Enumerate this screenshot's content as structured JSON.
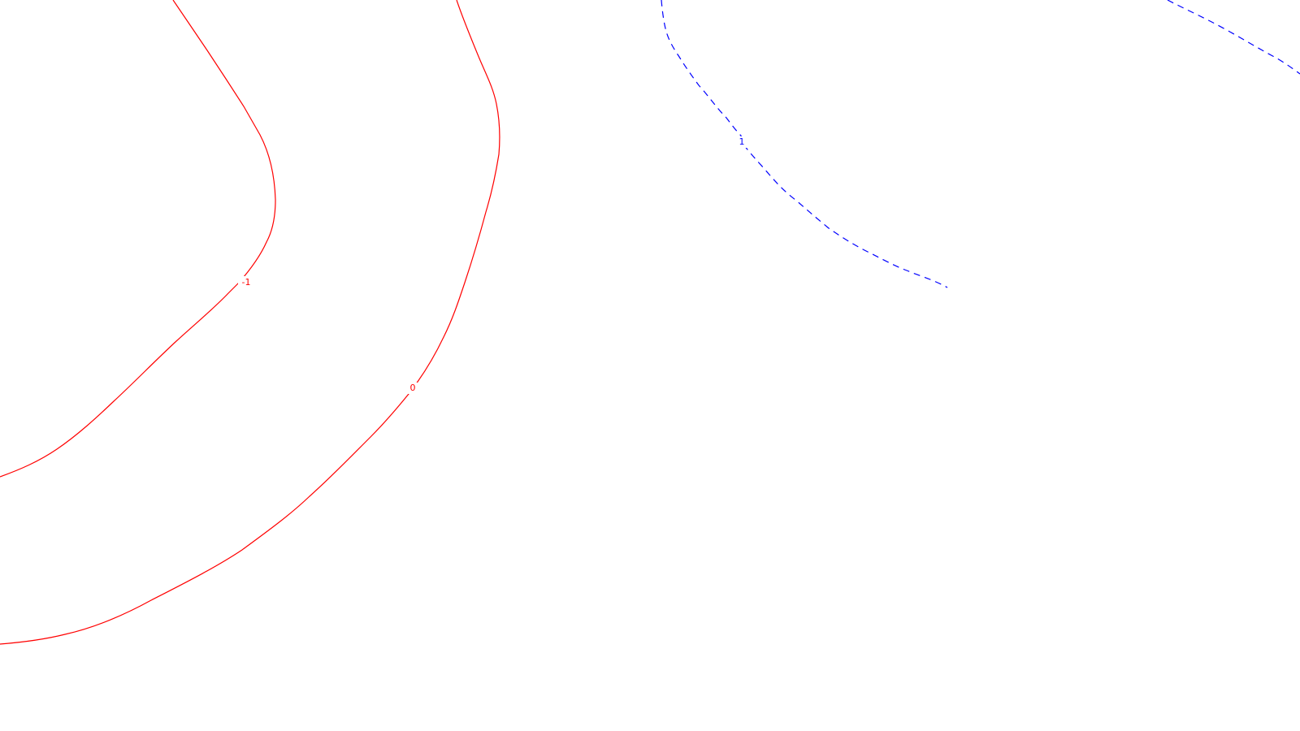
{
  "map": {
    "background_color": "#ffffff",
    "contours": [
      {
        "id": "contour-neg1",
        "label": "-1",
        "color": "#ff0000",
        "style": "solid"
      },
      {
        "id": "contour-zero",
        "label": "0",
        "color": "#ff0000",
        "style": "solid"
      },
      {
        "id": "contour-pos1-a",
        "label": "1",
        "color": "#0000ff",
        "style": "dashed"
      },
      {
        "id": "contour-pos1-b",
        "label": "",
        "color": "#0000ff",
        "style": "dashed"
      }
    ]
  }
}
